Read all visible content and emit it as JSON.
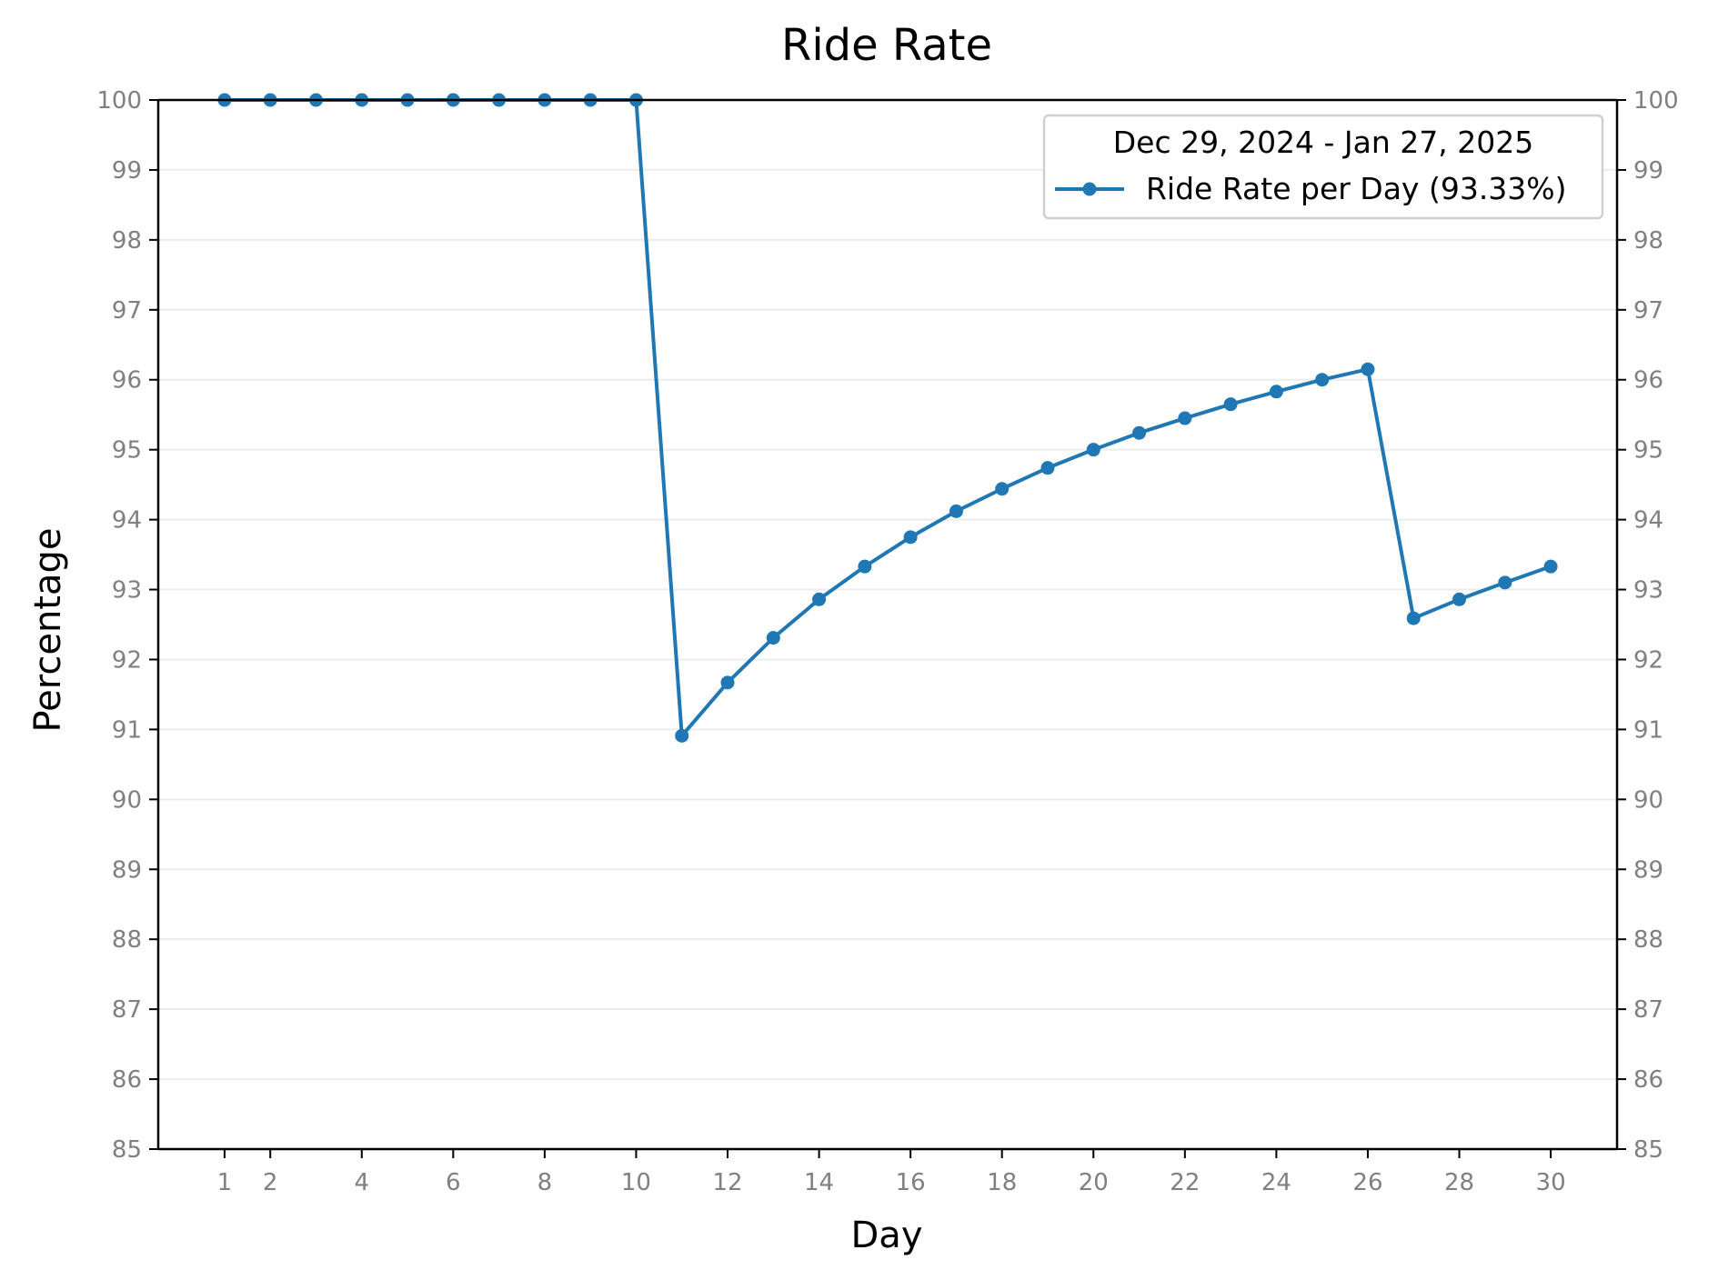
{
  "chart_data": {
    "type": "line",
    "title": "Ride Rate",
    "xlabel": "Day",
    "ylabel": "Percentage",
    "xlim": [
      -0.45,
      31.45
    ],
    "ylim": [
      85,
      100
    ],
    "x_ticks": [
      1,
      2,
      4,
      6,
      8,
      10,
      12,
      14,
      16,
      18,
      20,
      22,
      24,
      26,
      28,
      30
    ],
    "y_ticks": [
      85,
      86,
      87,
      88,
      89,
      90,
      91,
      92,
      93,
      94,
      95,
      96,
      97,
      98,
      99,
      100
    ],
    "right_axis_ticks": true,
    "grid": "horizontal",
    "legend": {
      "title": "Dec 29, 2024 - Jan 27, 2025",
      "placement": "top-right"
    },
    "x": [
      1,
      2,
      3,
      4,
      5,
      6,
      7,
      8,
      9,
      10,
      11,
      12,
      13,
      14,
      15,
      16,
      17,
      18,
      19,
      20,
      21,
      22,
      23,
      24,
      25,
      26,
      27,
      28,
      29,
      30
    ],
    "series": [
      {
        "name": "Ride Rate per Day (93.33%)",
        "color": "#1f77b4",
        "marker": "circle",
        "values": [
          100,
          100,
          100,
          100,
          100,
          100,
          100,
          100,
          100,
          100,
          90.91,
          91.67,
          92.31,
          92.86,
          93.33,
          93.75,
          94.12,
          94.44,
          94.74,
          95.0,
          95.24,
          95.45,
          95.65,
          95.83,
          96.0,
          96.15,
          92.59,
          92.86,
          93.1,
          93.33
        ]
      }
    ]
  }
}
